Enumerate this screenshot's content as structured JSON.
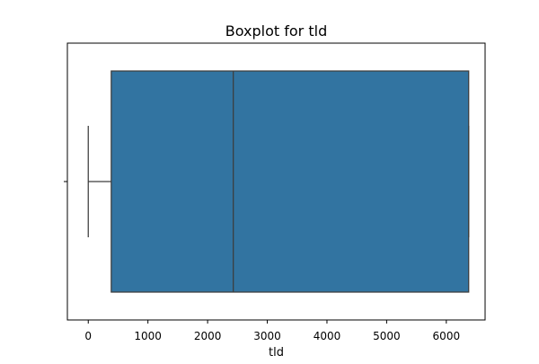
{
  "chart_data": {
    "type": "boxplot",
    "title": "Boxplot for tld",
    "xlabel": "tld",
    "ylabel": "",
    "xlim": [
      -350,
      6650
    ],
    "xticks": [
      0,
      1000,
      2000,
      3000,
      4000,
      5000,
      6000
    ],
    "xtick_labels": [
      "0",
      "1000",
      "2000",
      "3000",
      "4000",
      "5000",
      "6000"
    ],
    "box": {
      "whisker_low": 0,
      "q1": 385,
      "median": 2430,
      "q3": 6375,
      "whisker_high": 6375
    },
    "grid": false,
    "colors": {
      "box_fill": "#3274a1",
      "line": "#3d3d3d",
      "axes": "#000000"
    }
  }
}
